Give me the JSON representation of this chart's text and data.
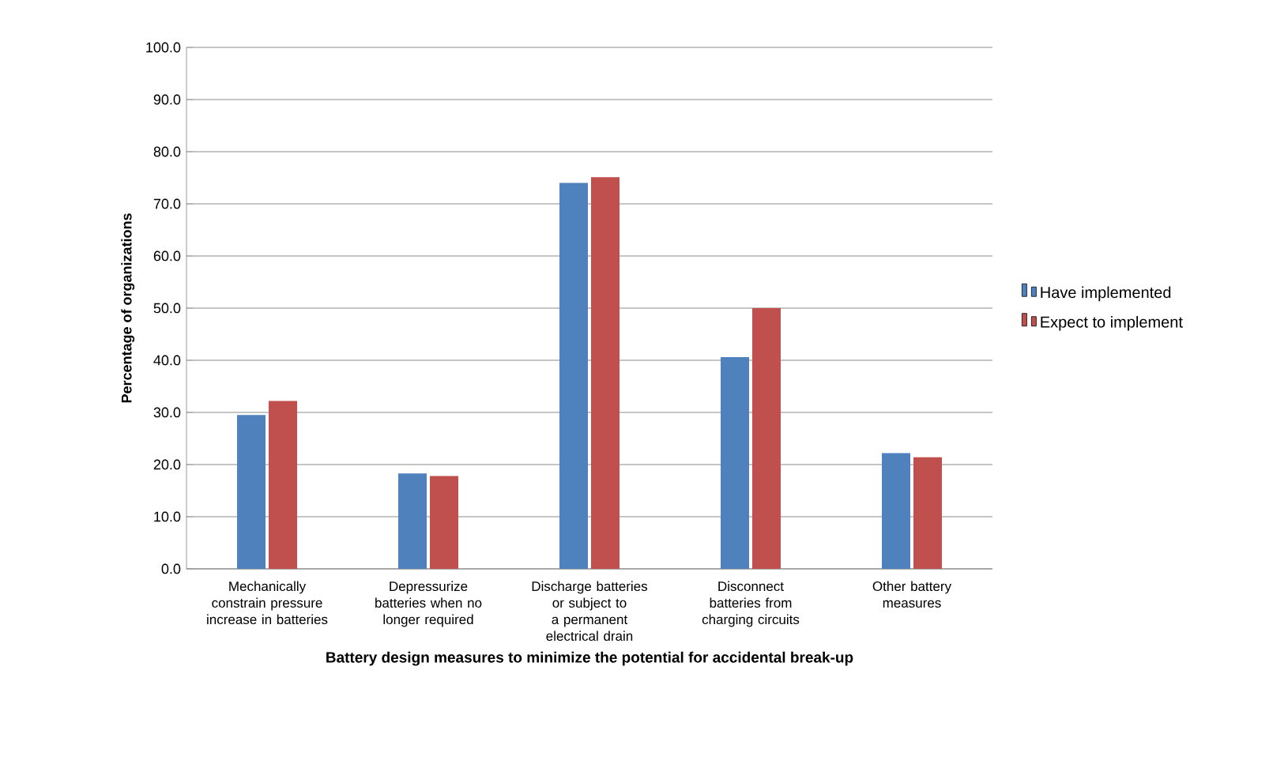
{
  "chart_data": {
    "type": "bar",
    "xlabel": "Battery design measures to minimize the potential for accidental break-up",
    "ylabel": "Percentage of organizations",
    "categories": [
      "Mechanically constrain pressure increase in batteries",
      "Depressurize batteries when no longer required",
      "Discharge batteries or subject to a permanent electrical drain",
      "Disconnect batteries from charging circuits",
      "Other battery measures"
    ],
    "series": [
      {
        "name": "Have implemented",
        "color": "#4f81bd",
        "values": [
          29.5,
          18.3,
          74.0,
          40.6,
          22.2
        ]
      },
      {
        "name": "Expect to implement",
        "color": "#c0504d",
        "values": [
          32.2,
          17.8,
          75.1,
          50.0,
          21.4
        ]
      }
    ],
    "ylim": [
      0,
      100
    ],
    "yticks": [
      {
        "value": 0,
        "label": "0.0"
      },
      {
        "value": 10,
        "label": "10.0"
      },
      {
        "value": 20,
        "label": "20.0"
      },
      {
        "value": 30,
        "label": "30.0"
      },
      {
        "value": 40,
        "label": "40.0"
      },
      {
        "value": 50,
        "label": "50.0"
      },
      {
        "value": 60,
        "label": "60.0"
      },
      {
        "value": 70,
        "label": "70.0"
      },
      {
        "value": 80,
        "label": "80.0"
      },
      {
        "value": 90,
        "label": "90.0"
      },
      {
        "value": 100,
        "label": "100.0"
      }
    ],
    "grid": "y",
    "legend": "right"
  }
}
